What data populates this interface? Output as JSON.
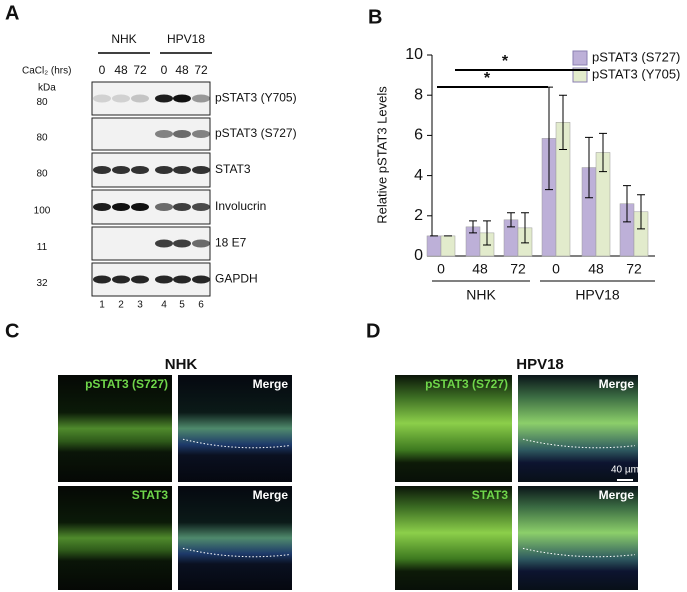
{
  "panel_a": {
    "letter": "A",
    "groups": [
      "NHK",
      "HPV18"
    ],
    "treatment_label": "CaCl₂ (hrs)",
    "timepoints": [
      "0",
      "48",
      "72",
      "0",
      "48",
      "72"
    ],
    "mw_unit": "kDa",
    "rows": [
      {
        "mw": "80",
        "label": "pSTAT3 (Y705)"
      },
      {
        "mw": "80",
        "label": "pSTAT3 (S727)"
      },
      {
        "mw": "80",
        "label": "STAT3"
      },
      {
        "mw": "100",
        "label": "Involucrin"
      },
      {
        "mw": "11",
        "label": "18 E7"
      },
      {
        "mw": "32",
        "label": "GAPDH"
      }
    ],
    "lanes": [
      "1",
      "2",
      "3",
      "4",
      "5",
      "6"
    ]
  },
  "panel_b": {
    "letter": "B"
  },
  "chart_data": {
    "type": "bar",
    "y_label": "Relative pSTAT3 Levels",
    "categories": [
      "0",
      "48",
      "72",
      "0",
      "48",
      "72"
    ],
    "group_labels": [
      "NHK",
      "HPV18"
    ],
    "series": [
      {
        "name": "pSTAT3 (S727)",
        "color": "#bdb0d8",
        "values": [
          1,
          1.45,
          1.8,
          5.85,
          4.4,
          2.6
        ],
        "errors": [
          0,
          0.3,
          0.35,
          2.55,
          1.5,
          0.9
        ]
      },
      {
        "name": "pSTAT3 (Y705)",
        "color": "#e2ebcc",
        "values": [
          1,
          1.15,
          1.4,
          6.65,
          5.15,
          2.2
        ],
        "errors": [
          0,
          0.6,
          0.75,
          1.35,
          0.95,
          0.85
        ]
      }
    ],
    "ylim": [
      0,
      10
    ],
    "yticks": [
      0,
      2,
      4,
      6,
      8,
      10
    ],
    "annotations": [
      "*",
      "*"
    ],
    "legend": "top-right"
  },
  "panel_c": {
    "letter": "C",
    "title": "NHK",
    "images": [
      [
        "pSTAT3 (S727)",
        "Merge"
      ],
      [
        "STAT3",
        "Merge"
      ]
    ]
  },
  "panel_d": {
    "letter": "D",
    "title": "HPV18",
    "images": [
      [
        "pSTAT3 (S727)",
        "Merge"
      ],
      [
        "STAT3",
        "Merge"
      ]
    ],
    "scale_bar": "40 µm"
  }
}
